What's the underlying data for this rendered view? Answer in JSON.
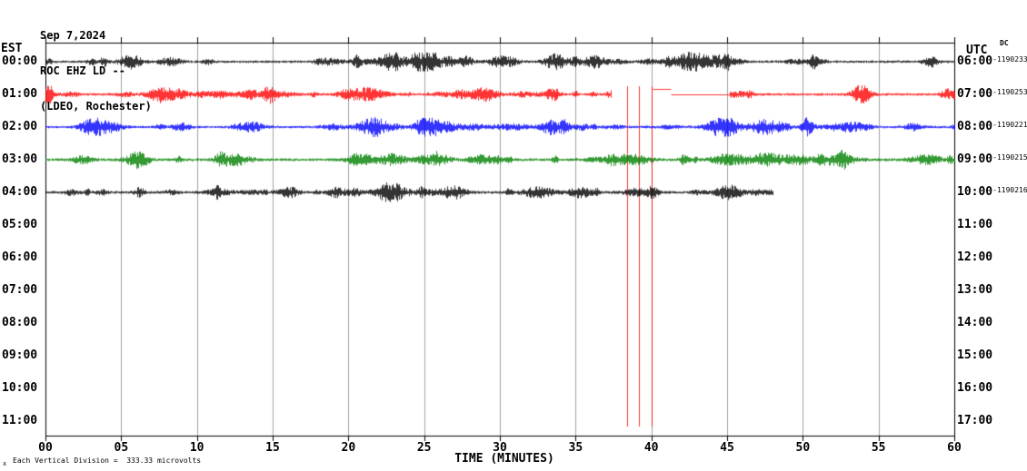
{
  "title": {
    "date": "Sep 7,2024",
    "station": "ROC EHZ LD --",
    "location": "(LDEO, Rochester)"
  },
  "axes": {
    "left_label": "EST",
    "right_label": "UTC",
    "dc_label": "DC",
    "x_axis_label": "TIME (MINUTES)",
    "x_ticks": [
      "00",
      "05",
      "10",
      "15",
      "20",
      "25",
      "30",
      "35",
      "40",
      "45",
      "50",
      "55",
      "60"
    ],
    "footer_marker": "x",
    "footer": "Each Vertical Division =  333.33 microvolts"
  },
  "chart_data": {
    "type": "line",
    "kind": "helicorder-seismogram",
    "station": "ROC EHZ LD",
    "x_unit": "minutes",
    "x_range": [
      0,
      60
    ],
    "grid_minutes": 5,
    "vertical_division_microvolts": 333.33,
    "rows": [
      {
        "est": "00:00",
        "utc": "06:00",
        "dc": "-1190233",
        "color": "#000000",
        "seed": 11,
        "base_amp": 1.4,
        "burst_amp": 6.5,
        "burst_count": 52,
        "segments": [
          {
            "from": 0,
            "to": 60,
            "type": "noise"
          }
        ]
      },
      {
        "est": "01:00",
        "utc": "07:00",
        "dc": "-1190253",
        "color": "#ff0000",
        "seed": 22,
        "base_amp": 1.4,
        "burst_amp": 6.5,
        "burst_count": 50,
        "segments": [
          {
            "from": 0,
            "to": 37.3,
            "type": "noise"
          },
          {
            "from": 40.1,
            "to": 41.3,
            "type": "flat",
            "offset": -6,
            "amp": 0.6
          },
          {
            "from": 41.3,
            "to": 45.2,
            "type": "flat",
            "offset": 0,
            "amp": 0.7
          },
          {
            "from": 45.2,
            "to": 60,
            "type": "noise"
          }
        ],
        "spikes_min": [
          38.4,
          39.2,
          40.0
        ]
      },
      {
        "est": "02:00",
        "utc": "08:00",
        "dc": "-1190221",
        "color": "#0000ff",
        "seed": 33,
        "base_amp": 1.3,
        "burst_amp": 6,
        "burst_count": 48,
        "segments": [
          {
            "from": 0,
            "to": 60,
            "type": "noise"
          }
        ]
      },
      {
        "est": "03:00",
        "utc": "09:00",
        "dc": "-1190215",
        "color": "#008000",
        "seed": 44,
        "base_amp": 1.6,
        "burst_amp": 8,
        "burst_count": 42,
        "segments": [
          {
            "from": 0,
            "to": 60,
            "type": "noise"
          }
        ]
      },
      {
        "est": "04:00",
        "utc": "10:00",
        "dc": "-1190216",
        "color": "#000000",
        "seed": 55,
        "base_amp": 1.5,
        "burst_amp": 7,
        "burst_count": 40,
        "segments": [
          {
            "from": 0,
            "to": 48,
            "type": "noise"
          }
        ]
      },
      {
        "est": "05:00",
        "utc": "11:00"
      },
      {
        "est": "06:00",
        "utc": "12:00"
      },
      {
        "est": "07:00",
        "utc": "13:00"
      },
      {
        "est": "08:00",
        "utc": "14:00"
      },
      {
        "est": "09:00",
        "utc": "15:00"
      },
      {
        "est": "10:00",
        "utc": "16:00"
      },
      {
        "est": "11:00",
        "utc": "17:00"
      }
    ]
  }
}
